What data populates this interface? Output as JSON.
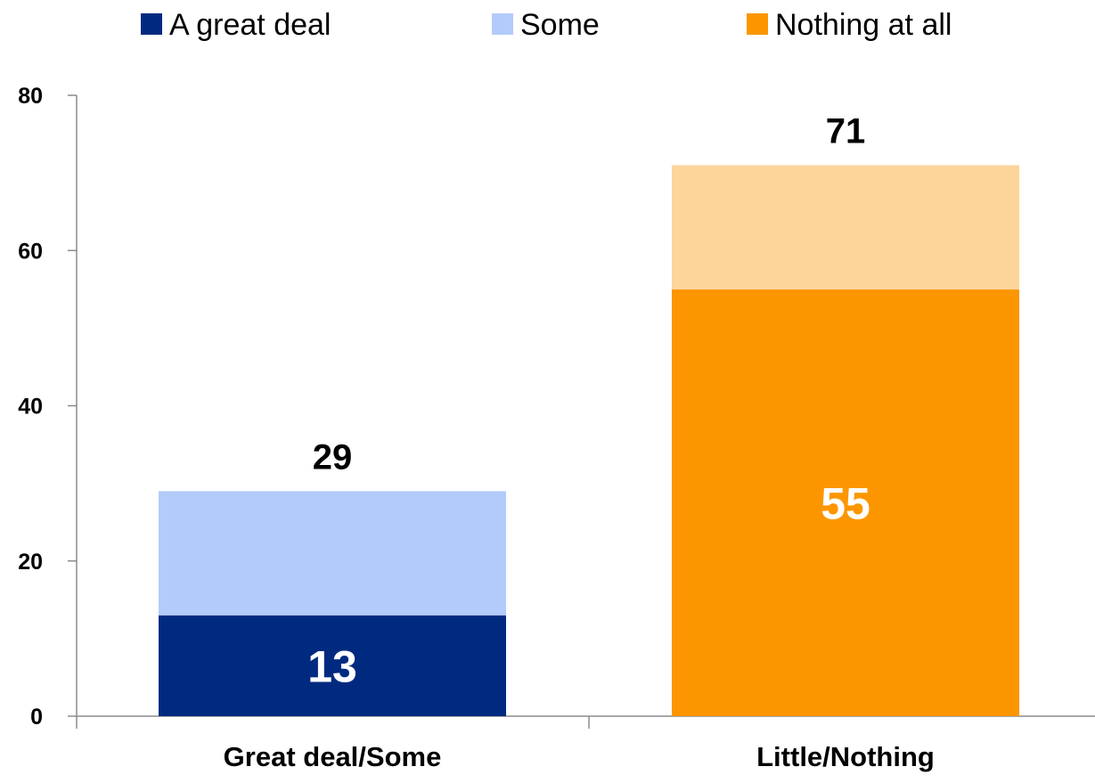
{
  "chart_data": {
    "type": "bar",
    "stacked": true,
    "categories": [
      "Great deal/Some",
      "Little/Nothing"
    ],
    "legend": [
      {
        "name": "A great deal",
        "color": "#002a80"
      },
      {
        "name": "Some",
        "color": "#b3cbfa"
      },
      {
        "name": "Nothing at all",
        "color": "#fc9600"
      }
    ],
    "legend_position": "top",
    "bars": [
      {
        "category": "Great deal/Some",
        "total": 29,
        "total_label": "29",
        "segments": [
          {
            "value": 13,
            "color": "#002a80",
            "label": "13"
          },
          {
            "value": 16,
            "color": "#b3cbfa",
            "label": ""
          }
        ]
      },
      {
        "category": "Little/Nothing",
        "total": 71,
        "total_label": "71",
        "segments": [
          {
            "value": 55,
            "color": "#fc9600",
            "label": "55"
          },
          {
            "value": 16,
            "color": "#fdd49a",
            "label": ""
          }
        ]
      }
    ],
    "y_ticks": [
      "0",
      "20",
      "40",
      "60",
      "80"
    ],
    "ylim": [
      0,
      80
    ],
    "grid": false,
    "title": "",
    "xlabel": "",
    "ylabel": ""
  }
}
